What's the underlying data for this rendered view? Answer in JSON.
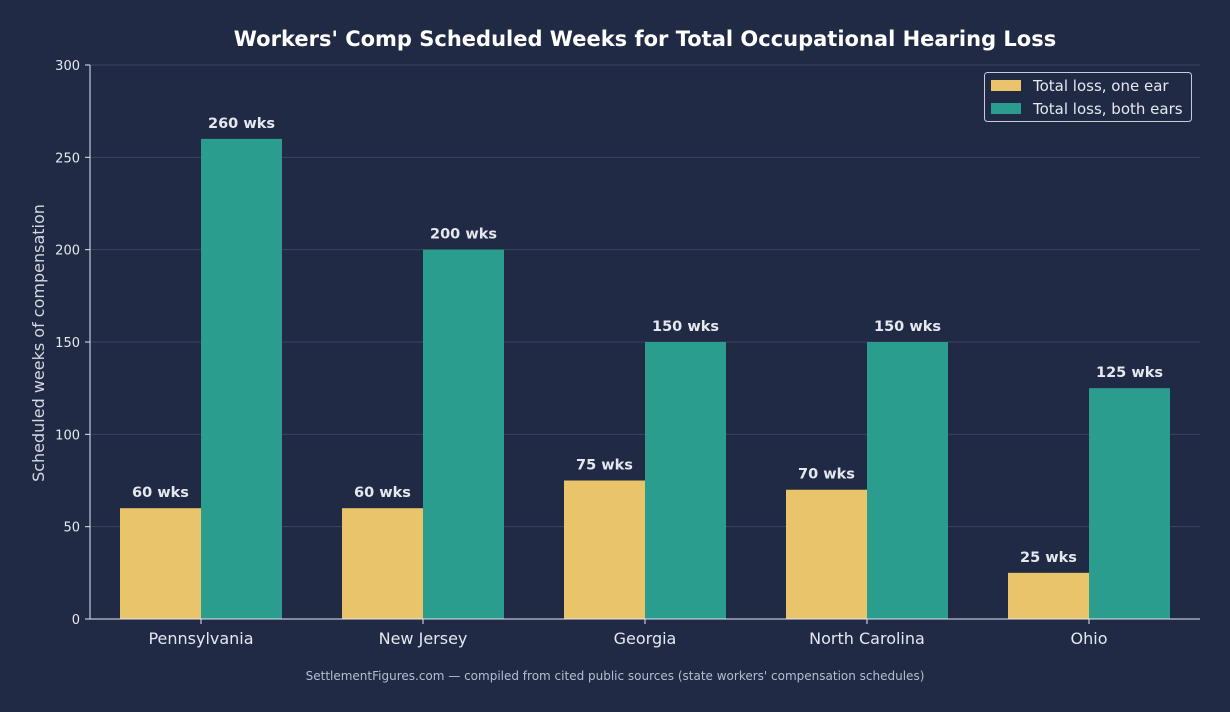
{
  "chart_data": {
    "type": "bar",
    "title": "Workers' Comp Scheduled Weeks for Total Occupational Hearing Loss",
    "xlabel": "",
    "ylabel": "Scheduled weeks of compensation",
    "ylim": [
      0,
      300
    ],
    "yticks": [
      0,
      50,
      100,
      150,
      200,
      250,
      300
    ],
    "grid": true,
    "legend_position": "top-right",
    "categories": [
      "Pennsylvania",
      "New Jersey",
      "Georgia",
      "North Carolina",
      "Ohio"
    ],
    "series": [
      {
        "name": "Total loss, one ear",
        "color": "#e9c46a",
        "values": [
          60,
          60,
          75,
          70,
          25
        ],
        "labels": [
          "60 wks",
          "60 wks",
          "75 wks",
          "70 wks",
          "25 wks"
        ]
      },
      {
        "name": "Total loss, both ears",
        "color": "#2a9d8f",
        "values": [
          260,
          200,
          150,
          150,
          125
        ],
        "labels": [
          "260 wks",
          "200 wks",
          "150 wks",
          "150 wks",
          "125 wks"
        ]
      }
    ]
  },
  "footer": "SettlementFigures.com — compiled from cited public sources (state workers' compensation schedules)"
}
